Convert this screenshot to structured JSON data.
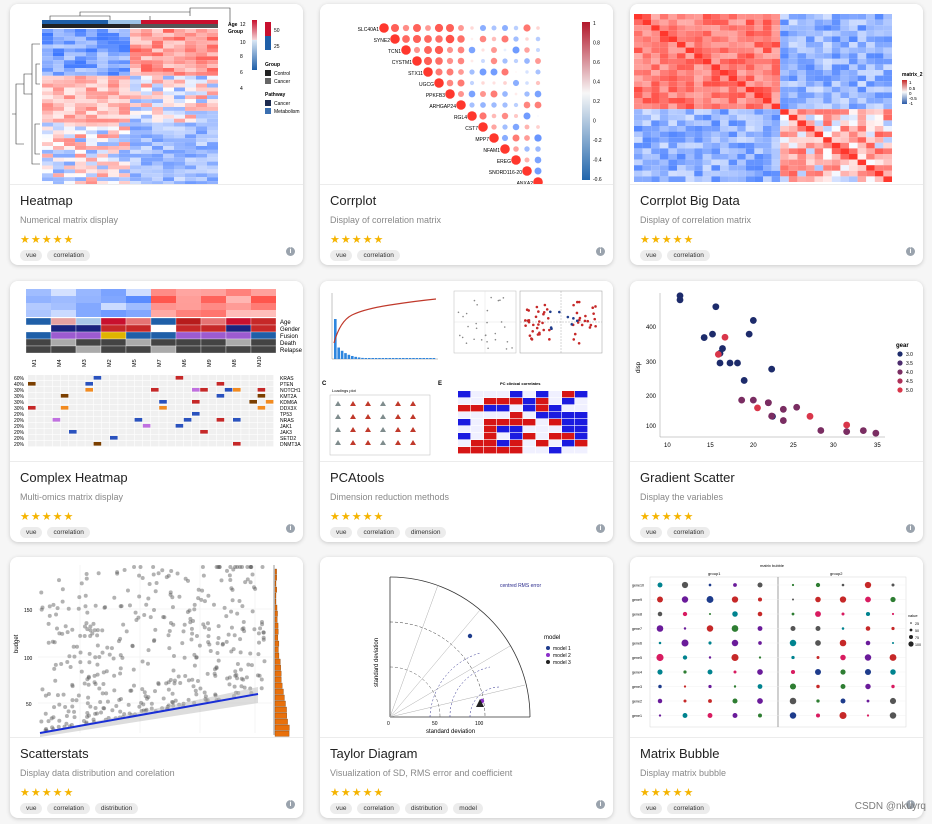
{
  "cards": [
    {
      "title": "Heatmap",
      "description": "Numerical matrix display",
      "stars": "★★★★★",
      "tags": [
        "vue",
        "correlation"
      ]
    },
    {
      "title": "Corrplot",
      "description": "Display of correlation matrix",
      "stars": "★★★★★",
      "tags": [
        "vue",
        "correlation"
      ]
    },
    {
      "title": "Corrplot Big Data",
      "description": "Display of correlation matrix",
      "stars": "★★★★★",
      "tags": [
        "vue",
        "correlation"
      ]
    },
    {
      "title": "Complex Heatmap",
      "description": "Multi-omics matrix display",
      "stars": "★★★★★",
      "tags": [
        "vue",
        "correlation"
      ]
    },
    {
      "title": "PCAtools",
      "description": "Dimension reduction methods",
      "stars": "★★★★★",
      "tags": [
        "vue",
        "correlation",
        "dimension"
      ]
    },
    {
      "title": "Gradient Scatter",
      "description": "Display the variables",
      "stars": "★★★★★",
      "tags": [
        "vue",
        "correlation"
      ]
    },
    {
      "title": "Scatterstats",
      "description": "Display data distribution and corelation",
      "stars": "★★★★★",
      "tags": [
        "vue",
        "correlation",
        "distribution"
      ]
    },
    {
      "title": "Taylor Diagram",
      "description": "Visualization of SD, RMS error and coefficient",
      "stars": "★★★★★",
      "tags": [
        "vue",
        "correlation",
        "distribution",
        "model"
      ]
    },
    {
      "title": "Matrix Bubble",
      "description": "Display matrix bubble",
      "stars": "★★★★★",
      "tags": [
        "vue",
        "correlation"
      ]
    }
  ],
  "info_icon": "i",
  "watermark": "CSDN @nkuyrq",
  "thumbs": {
    "heatmap": {
      "legend_age": "Age",
      "legend_group": "Group",
      "legend_pathway": "Pathway",
      "age_ticks": [
        "50",
        "25"
      ],
      "value_ticks": [
        "12",
        "10",
        "8",
        "6",
        "4"
      ],
      "group_items": [
        "Control",
        "Cancer"
      ],
      "pathway_items": [
        "Cancer",
        "Metabolism"
      ]
    },
    "corrplot": {
      "rows": [
        "SLC40A1",
        "SYNE2",
        "TCN1",
        "CYSTM1",
        "STX11",
        "UGCG",
        "PPKFB3",
        "ARHGAP24",
        "RGL4",
        "CST7",
        "MPP7",
        "NFAM1",
        "EREG",
        "SNORD116-20",
        "ANXA2"
      ],
      "scale": [
        "1",
        "0.8",
        "0.6",
        "0.4",
        "0.2",
        "0",
        "-0.2",
        "-0.4",
        "-0.6"
      ]
    },
    "bigdata": {
      "legend_title": "matrix_2",
      "legend_ticks": [
        "1",
        "0.5",
        "0",
        "-0.5",
        "-1"
      ]
    },
    "complex": {
      "anno_labels": [
        "Age",
        "Gender",
        "Fusion",
        "Death",
        "Relapse"
      ],
      "cols_top": [
        "M1",
        "M4",
        "M3",
        "M2",
        "M5",
        "M7",
        "M6",
        "M9",
        "M8",
        "M10"
      ],
      "genes": [
        "KRAS",
        "PTEN",
        "NOTCH1",
        "KMT2A",
        "KDM6A",
        "DDX3X",
        "TP53",
        "NRAS",
        "JAK1",
        "JAK3",
        "SETD2",
        "DNMT3A"
      ],
      "pcts": [
        "60%",
        "40%",
        "30%",
        "30%",
        "30%",
        "30%",
        "20%",
        "20%",
        "20%",
        "20%",
        "20%",
        "20%"
      ]
    },
    "pca": {
      "panel_c": "C",
      "panel_e": "E",
      "loadings_title": "Loadings plot",
      "clinical_title": "PC clinical correlates"
    },
    "gradient": {
      "ylabel": "disp",
      "xlabel": "mpg",
      "legend_title": "gear",
      "legend_items": [
        "3.0",
        "3.5",
        "4.0",
        "4.5",
        "5.0"
      ],
      "yticks": [
        "400",
        "300",
        "200",
        "100"
      ],
      "xticks": [
        "10",
        "15",
        "20",
        "25",
        "30",
        "35"
      ]
    },
    "scatterstats": {
      "ylabel": "budget",
      "yticks": [
        "150",
        "100",
        "50"
      ]
    },
    "taylor": {
      "ylabel": "standard deviation",
      "xlabel": "standard deviation",
      "legend_title": "model",
      "legend_items": [
        "model 1",
        "model 2",
        "model 3"
      ],
      "box_title": "centred RMS error",
      "xticks": [
        "0",
        "50",
        "100"
      ]
    },
    "bubble": {
      "title": "matrix bubble",
      "groups": [
        "group1",
        "group2"
      ],
      "rows": [
        "gene10",
        "gene9",
        "gene8",
        "gene7",
        "gene6",
        "gene5",
        "gene4",
        "gene3",
        "gene2",
        "gene1"
      ],
      "legend_title": "value",
      "legend_items": [
        "25",
        "50",
        "75",
        "100"
      ]
    }
  }
}
